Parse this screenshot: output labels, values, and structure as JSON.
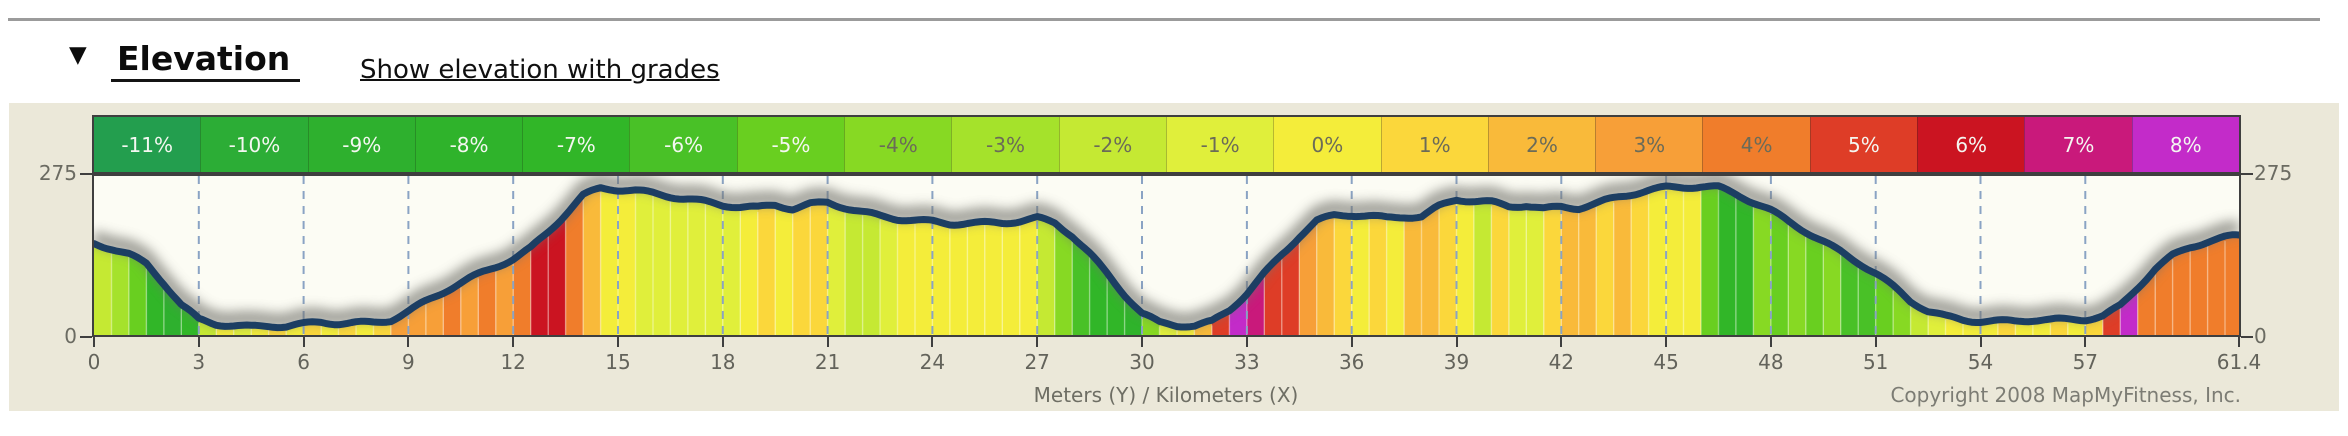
{
  "header": {
    "collapse_icon": "▼",
    "title": "Elevation",
    "link": "Show elevation with grades"
  },
  "chart": {
    "y_axis": {
      "max_label": "275",
      "min_label": "0"
    },
    "x_axis": {
      "ticks": [
        0,
        3,
        6,
        9,
        12,
        15,
        18,
        21,
        24,
        27,
        30,
        33,
        36,
        39,
        42,
        45,
        48,
        51,
        54,
        57
      ],
      "end_tick": {
        "km": 61.4,
        "label": "61.4"
      }
    },
    "caption": "Meters (Y) / Kilometers (X)",
    "copyright": "Copyright 2008 MapMyFitness, Inc."
  },
  "legend": {
    "items": [
      {
        "label": "-11%",
        "color": "#239e4e",
        "text_color": "#f4f7f1"
      },
      {
        "label": "-10%",
        "color": "#2cad36",
        "text_color": "#f4f7f1"
      },
      {
        "label": "-9%",
        "color": "#2eb02e",
        "text_color": "#f4f7f1"
      },
      {
        "label": "-8%",
        "color": "#2fb32b",
        "text_color": "#f4f7f1"
      },
      {
        "label": "-7%",
        "color": "#31b628",
        "text_color": "#f4f7f1"
      },
      {
        "label": "-6%",
        "color": "#49c127",
        "text_color": "#f4f7f1"
      },
      {
        "label": "-5%",
        "color": "#69cf20",
        "text_color": "#f4f7f1"
      },
      {
        "label": "-4%",
        "color": "#87d923",
        "text_color": "#6b6b58"
      },
      {
        "label": "-3%",
        "color": "#a5e22b",
        "text_color": "#6b6b58"
      },
      {
        "label": "-2%",
        "color": "#c5e933",
        "text_color": "#6b6b58"
      },
      {
        "label": "-1%",
        "color": "#e0ef3b",
        "text_color": "#6b6b58"
      },
      {
        "label": "0%",
        "color": "#f4ed3a",
        "text_color": "#6b6b58"
      },
      {
        "label": "1%",
        "color": "#fbd73b",
        "text_color": "#6b6b58"
      },
      {
        "label": "2%",
        "color": "#f9ba3a",
        "text_color": "#6b6b58"
      },
      {
        "label": "3%",
        "color": "#f79f38",
        "text_color": "#6b6b58"
      },
      {
        "label": "4%",
        "color": "#f07d2b",
        "text_color": "#6b6b58"
      },
      {
        "label": "5%",
        "color": "#de3d27",
        "text_color": "#f4f7f1"
      },
      {
        "label": "6%",
        "color": "#cb1421",
        "text_color": "#f4f7f1"
      },
      {
        "label": "7%",
        "color": "#c9197b",
        "text_color": "#f4f7f1"
      },
      {
        "label": "8%",
        "color": "#c32bc9",
        "text_color": "#f4f7f1"
      }
    ]
  },
  "chart_data": {
    "type": "area",
    "title": "Elevation",
    "xlabel": "Kilometers (X)",
    "ylabel": "Meters (Y)",
    "legend_position": "top",
    "grid": "vertical-dashed",
    "ylim": [
      0,
      275
    ],
    "x_step_km": 0.5,
    "x_max_km": 61.4,
    "line_color": "#1c3e63",
    "gridline_color": "#8aa3c4",
    "elevations_m": [
      160,
      152,
      140,
      122,
      88,
      50,
      26,
      20,
      18,
      16,
      17,
      15,
      17,
      20,
      19,
      21,
      23,
      28,
      42,
      58,
      73,
      88,
      103,
      118,
      133,
      152,
      180,
      210,
      240,
      252,
      250,
      249,
      246,
      242,
      237,
      231,
      224,
      220,
      218,
      224,
      219,
      228,
      231,
      222,
      212,
      204,
      199,
      197,
      196,
      194,
      196,
      195,
      194,
      196,
      200,
      192,
      172,
      142,
      108,
      72,
      38,
      20,
      15,
      14,
      22,
      44,
      74,
      108,
      140,
      170,
      195,
      205,
      207,
      206,
      204,
      207,
      206,
      222,
      233,
      230,
      228,
      222,
      226,
      220,
      223,
      220,
      226,
      234,
      242,
      250,
      256,
      258,
      259,
      256,
      243,
      228,
      213,
      196,
      180,
      163,
      146,
      127,
      106,
      82,
      57,
      40,
      32,
      28,
      26,
      25,
      24,
      25,
      24,
      25,
      27,
      34,
      52,
      84,
      115,
      136,
      150,
      160,
      168,
      173
    ],
    "segment_grade_pct": [
      -2,
      -3,
      -5,
      -7,
      -9,
      -7,
      -2,
      0,
      -1,
      0,
      1,
      0,
      1,
      0,
      1,
      0,
      1,
      3,
      3,
      3,
      4,
      3,
      4,
      3,
      4,
      6,
      6,
      4,
      2,
      0,
      0,
      -1,
      -1,
      -1,
      -1,
      -1,
      -1,
      0,
      1,
      0,
      1,
      1,
      -1,
      -2,
      -2,
      -1,
      0,
      0,
      0,
      0,
      0,
      0,
      0,
      0,
      -2,
      -4,
      -6,
      -7,
      -7,
      -8,
      -4,
      -1,
      0,
      2,
      5,
      8,
      7,
      5,
      5,
      3,
      2,
      1,
      0,
      1,
      0,
      2,
      2,
      1,
      0,
      -2,
      1,
      -1,
      -1,
      1,
      2,
      2,
      1,
      2,
      1,
      0,
      0,
      0,
      -5,
      -7,
      -7,
      -4,
      -5,
      -4,
      -5,
      -4,
      -6,
      -6,
      -5,
      -4,
      -2,
      -1,
      0,
      0,
      0,
      1,
      0,
      0,
      1,
      0,
      1,
      5,
      8,
      4,
      4,
      4,
      4,
      4,
      4
    ]
  }
}
